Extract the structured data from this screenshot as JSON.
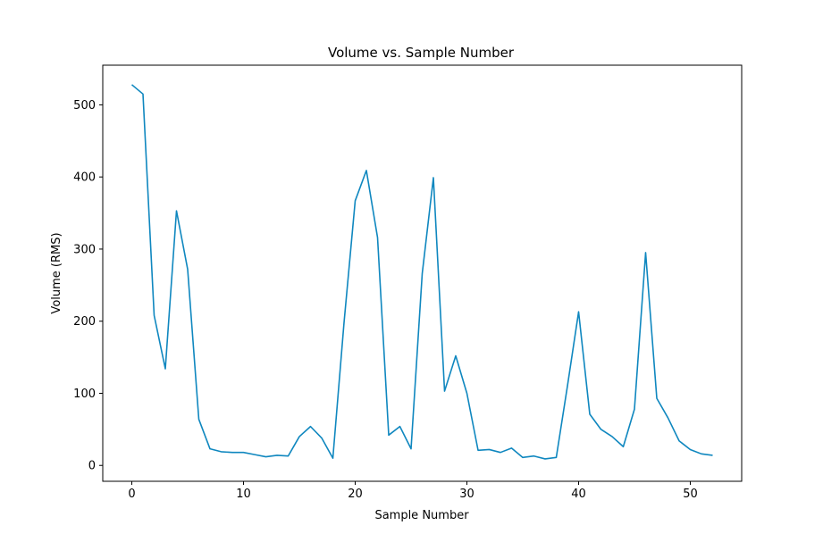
{
  "chart_data": {
    "type": "line",
    "title": "Volume vs. Sample Number",
    "xlabel": "Sample Number",
    "ylabel": "Volume (RMS)",
    "xlim": [
      -2.6,
      54.6
    ],
    "ylim": [
      -22,
      555
    ],
    "xticks": [
      0,
      10,
      20,
      30,
      40,
      50
    ],
    "yticks": [
      0,
      100,
      200,
      300,
      400,
      500
    ],
    "grid": false,
    "series": [
      {
        "color": "#0f87bf",
        "x": [
          0,
          1,
          2,
          3,
          4,
          5,
          6,
          7,
          8,
          9,
          10,
          11,
          12,
          13,
          14,
          15,
          16,
          17,
          18,
          19,
          20,
          21,
          22,
          23,
          24,
          25,
          26,
          27,
          28,
          29,
          30,
          31,
          32,
          33,
          34,
          35,
          36,
          37,
          38,
          39,
          40,
          41,
          42,
          43,
          44,
          45,
          46,
          47,
          48,
          49,
          50,
          51,
          52
        ],
        "values": [
          528,
          515,
          208,
          134,
          353,
          272,
          64,
          23,
          19,
          18,
          18,
          15,
          12,
          14,
          13,
          40,
          54,
          38,
          10,
          198,
          367,
          409,
          316,
          42,
          54,
          23,
          266,
          399,
          103,
          152,
          100,
          21,
          22,
          18,
          24,
          11,
          13,
          9,
          11,
          110,
          213,
          71,
          50,
          40,
          26,
          78,
          295,
          93,
          66,
          34,
          22,
          16,
          14
        ]
      }
    ]
  }
}
